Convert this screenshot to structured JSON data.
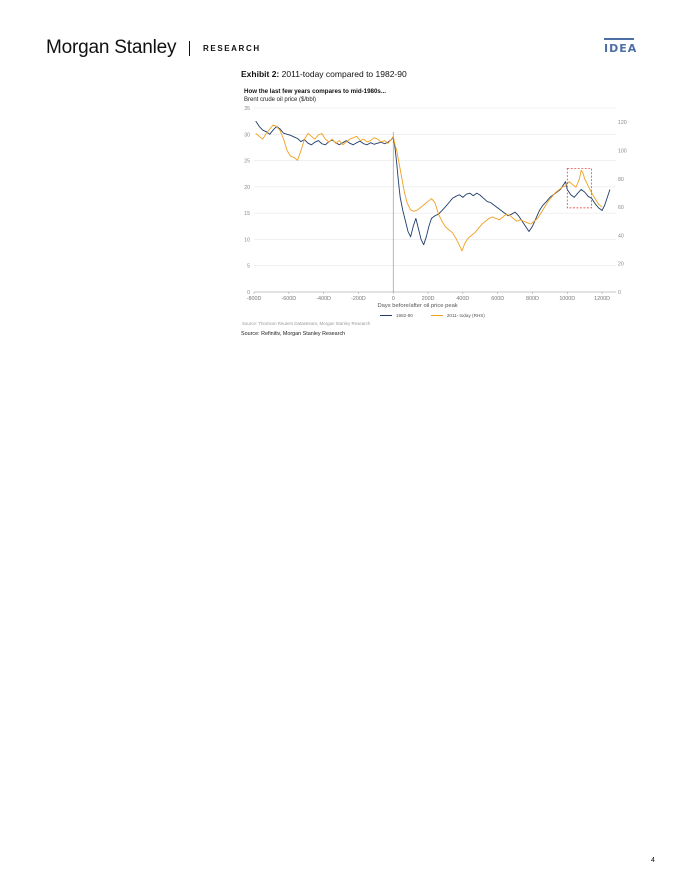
{
  "header": {
    "logo_text": "Morgan Stanley",
    "section": "RESEARCH",
    "badge": "IDEA",
    "accent_color": "#4d6fa5"
  },
  "exhibit": {
    "label": "Exhibit 2:",
    "title": "2011-today compared to 1982-90"
  },
  "chart_data": {
    "type": "line",
    "title": "How the last few years compares to mid-1980s...",
    "subtitle": "Brent crude oil price ($/bbl)",
    "xlabel": "Days before/after oil price peak",
    "x_ticks": [
      "-800D",
      "-600D",
      "-400D",
      "-200D",
      "0",
      "200D",
      "400D",
      "600D",
      "800D",
      "1000D",
      "1200D"
    ],
    "xlim": [
      -800,
      1280
    ],
    "y_left": {
      "range": [
        0,
        35
      ],
      "ticks": [
        "0",
        "5",
        "10",
        "15",
        "20",
        "25",
        "30",
        "35"
      ]
    },
    "y_right": {
      "range": [
        0,
        130
      ],
      "ticks": [
        "0",
        "20",
        "40",
        "60",
        "80",
        "100",
        "120"
      ]
    },
    "grid": true,
    "peak_line_x": 0,
    "highlight_box": {
      "x": [
        1000,
        1140
      ],
      "y_left": [
        16,
        23.5
      ]
    },
    "legend_position": "bottom-center",
    "series": [
      {
        "name": "1982-90",
        "axis": "left",
        "color": "#1f3d6b",
        "points": [
          [
            -790,
            32.5
          ],
          [
            -770,
            31.5
          ],
          [
            -750,
            30.8
          ],
          [
            -730,
            30.5
          ],
          [
            -710,
            30.0
          ],
          [
            -690,
            30.8
          ],
          [
            -670,
            31.5
          ],
          [
            -650,
            31.0
          ],
          [
            -630,
            30.2
          ],
          [
            -610,
            30.0
          ],
          [
            -590,
            29.8
          ],
          [
            -570,
            29.5
          ],
          [
            -550,
            29.2
          ],
          [
            -530,
            28.6
          ],
          [
            -510,
            29.0
          ],
          [
            -490,
            28.3
          ],
          [
            -470,
            28.0
          ],
          [
            -450,
            28.5
          ],
          [
            -430,
            28.8
          ],
          [
            -410,
            28.2
          ],
          [
            -390,
            28.0
          ],
          [
            -370,
            28.6
          ],
          [
            -350,
            28.9
          ],
          [
            -330,
            28.4
          ],
          [
            -310,
            28.0
          ],
          [
            -290,
            28.4
          ],
          [
            -270,
            28.8
          ],
          [
            -250,
            28.3
          ],
          [
            -230,
            28.0
          ],
          [
            -210,
            28.4
          ],
          [
            -190,
            28.7
          ],
          [
            -170,
            28.2
          ],
          [
            -150,
            28.0
          ],
          [
            -130,
            28.4
          ],
          [
            -110,
            28.1
          ],
          [
            -90,
            28.3
          ],
          [
            -70,
            28.5
          ],
          [
            -50,
            28.2
          ],
          [
            -30,
            28.5
          ],
          [
            -10,
            29.0
          ],
          [
            0,
            29.5
          ],
          [
            10,
            27.5
          ],
          [
            20,
            24.5
          ],
          [
            30,
            21.0
          ],
          [
            40,
            18.0
          ],
          [
            55,
            15.5
          ],
          [
            70,
            13.5
          ],
          [
            85,
            11.5
          ],
          [
            100,
            10.5
          ],
          [
            115,
            12.5
          ],
          [
            130,
            14.0
          ],
          [
            145,
            12.0
          ],
          [
            160,
            10.0
          ],
          [
            175,
            9.0
          ],
          [
            190,
            10.5
          ],
          [
            205,
            12.5
          ],
          [
            220,
            14.0
          ],
          [
            240,
            14.5
          ],
          [
            260,
            14.8
          ],
          [
            280,
            15.5
          ],
          [
            300,
            16.2
          ],
          [
            320,
            17.0
          ],
          [
            340,
            17.8
          ],
          [
            360,
            18.2
          ],
          [
            380,
            18.5
          ],
          [
            400,
            18.0
          ],
          [
            420,
            18.6
          ],
          [
            440,
            18.8
          ],
          [
            460,
            18.3
          ],
          [
            480,
            18.8
          ],
          [
            500,
            18.4
          ],
          [
            520,
            17.8
          ],
          [
            540,
            17.2
          ],
          [
            560,
            17.0
          ],
          [
            580,
            16.5
          ],
          [
            600,
            16.0
          ],
          [
            620,
            15.5
          ],
          [
            640,
            15.0
          ],
          [
            660,
            14.5
          ],
          [
            680,
            14.8
          ],
          [
            700,
            15.2
          ],
          [
            720,
            14.5
          ],
          [
            740,
            13.5
          ],
          [
            760,
            12.5
          ],
          [
            780,
            11.5
          ],
          [
            800,
            12.5
          ],
          [
            820,
            14.0
          ],
          [
            840,
            15.5
          ],
          [
            860,
            16.5
          ],
          [
            880,
            17.2
          ],
          [
            900,
            18.0
          ],
          [
            920,
            18.5
          ],
          [
            940,
            19.0
          ],
          [
            960,
            19.5
          ],
          [
            980,
            20.5
          ],
          [
            990,
            21.0
          ],
          [
            1000,
            19.5
          ],
          [
            1020,
            18.5
          ],
          [
            1040,
            18.0
          ],
          [
            1060,
            18.8
          ],
          [
            1080,
            19.5
          ],
          [
            1100,
            19.0
          ],
          [
            1120,
            18.2
          ],
          [
            1140,
            17.8
          ],
          [
            1160,
            16.8
          ],
          [
            1180,
            16.0
          ],
          [
            1200,
            15.5
          ],
          [
            1215,
            16.5
          ],
          [
            1230,
            18.0
          ],
          [
            1245,
            19.5
          ]
        ]
      },
      {
        "name": "2011- today (RHS)",
        "axis": "right",
        "color": "#f0a020",
        "points": [
          [
            -790,
            112
          ],
          [
            -770,
            110
          ],
          [
            -750,
            108
          ],
          [
            -730,
            112
          ],
          [
            -710,
            115
          ],
          [
            -690,
            118
          ],
          [
            -670,
            117
          ],
          [
            -650,
            114
          ],
          [
            -630,
            108
          ],
          [
            -610,
            100
          ],
          [
            -590,
            96
          ],
          [
            -570,
            95
          ],
          [
            -550,
            93
          ],
          [
            -530,
            100
          ],
          [
            -510,
            108
          ],
          [
            -490,
            112
          ],
          [
            -470,
            110
          ],
          [
            -450,
            108
          ],
          [
            -430,
            111
          ],
          [
            -410,
            112
          ],
          [
            -390,
            108
          ],
          [
            -370,
            106
          ],
          [
            -350,
            108
          ],
          [
            -330,
            105
          ],
          [
            -310,
            107
          ],
          [
            -290,
            104
          ],
          [
            -270,
            106
          ],
          [
            -250,
            108
          ],
          [
            -230,
            109
          ],
          [
            -210,
            110
          ],
          [
            -190,
            107
          ],
          [
            -170,
            108
          ],
          [
            -150,
            106
          ],
          [
            -130,
            107
          ],
          [
            -110,
            109
          ],
          [
            -90,
            108
          ],
          [
            -70,
            106
          ],
          [
            -50,
            107
          ],
          [
            -30,
            105
          ],
          [
            -10,
            108
          ],
          [
            0,
            110
          ],
          [
            10,
            104
          ],
          [
            20,
            100
          ],
          [
            35,
            90
          ],
          [
            50,
            80
          ],
          [
            65,
            70
          ],
          [
            80,
            63
          ],
          [
            100,
            58
          ],
          [
            120,
            57
          ],
          [
            140,
            58
          ],
          [
            160,
            60
          ],
          [
            180,
            62
          ],
          [
            200,
            64
          ],
          [
            220,
            66
          ],
          [
            240,
            63
          ],
          [
            260,
            55
          ],
          [
            280,
            50
          ],
          [
            300,
            46
          ],
          [
            320,
            44
          ],
          [
            340,
            42
          ],
          [
            360,
            38
          ],
          [
            380,
            33
          ],
          [
            395,
            29
          ],
          [
            410,
            34
          ],
          [
            430,
            38
          ],
          [
            450,
            40
          ],
          [
            470,
            42
          ],
          [
            490,
            45
          ],
          [
            510,
            48
          ],
          [
            530,
            50
          ],
          [
            550,
            52
          ],
          [
            570,
            53
          ],
          [
            590,
            52
          ],
          [
            610,
            51
          ],
          [
            630,
            53
          ],
          [
            650,
            55
          ],
          [
            670,
            54
          ],
          [
            690,
            52
          ],
          [
            710,
            50
          ],
          [
            730,
            51
          ],
          [
            750,
            50
          ],
          [
            770,
            49
          ],
          [
            790,
            48
          ],
          [
            810,
            50
          ],
          [
            830,
            52
          ],
          [
            850,
            56
          ],
          [
            870,
            60
          ],
          [
            890,
            64
          ],
          [
            910,
            67
          ],
          [
            930,
            70
          ],
          [
            950,
            72
          ],
          [
            970,
            74
          ],
          [
            990,
            75
          ],
          [
            1010,
            78
          ],
          [
            1030,
            76
          ],
          [
            1050,
            74
          ],
          [
            1070,
            80
          ],
          [
            1080,
            86
          ],
          [
            1090,
            84
          ],
          [
            1100,
            80
          ],
          [
            1120,
            75
          ],
          [
            1140,
            70
          ],
          [
            1160,
            66
          ],
          [
            1180,
            62
          ],
          [
            1200,
            60
          ]
        ]
      }
    ]
  },
  "chart_source": "Source: Thomson Reuters Datastream, Morgan Stanley Research",
  "source": "Source: Refinitiv, Morgan Stanley Research",
  "page_number": "4"
}
